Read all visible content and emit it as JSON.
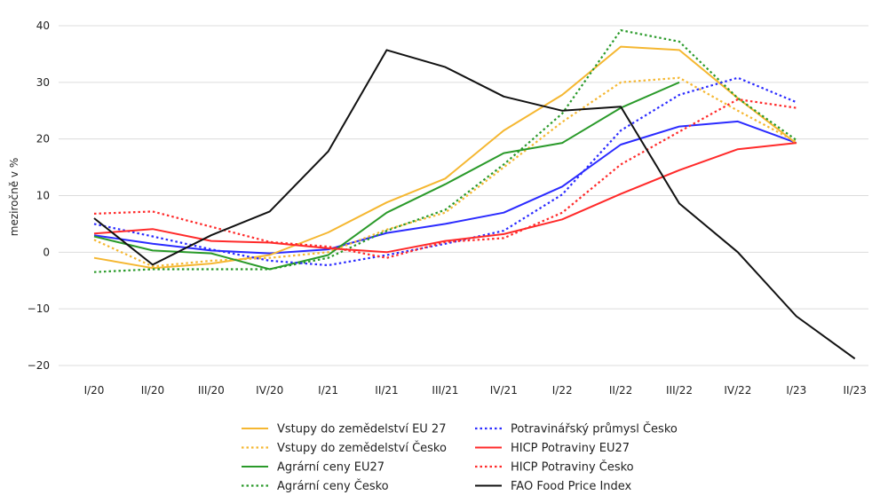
{
  "chart_data": {
    "type": "line",
    "categories": [
      "I/20",
      "II/20",
      "III/20",
      "IV/20",
      "I/21",
      "II/21",
      "III/21",
      "IV/21",
      "I/22",
      "II/22",
      "III/22",
      "IV/22",
      "I/23",
      "II/23"
    ],
    "ylabel": "meziročně v %",
    "ylim": [
      -20,
      40
    ],
    "yticks": [
      -20,
      -10,
      0,
      10,
      20,
      30,
      40
    ],
    "grid": true,
    "legend": "bottom",
    "series": [
      {
        "name": "Vstupy do zemědelství EU 27",
        "color": "#f5b731",
        "style": "solid",
        "values": [
          -1,
          -2.8,
          -2,
          -0.5,
          3.5,
          8.8,
          13,
          21.5,
          27.8,
          36.3,
          35.7,
          27.2,
          19.2,
          null
        ]
      },
      {
        "name": "Vstupy do zemědelství Česko",
        "color": "#f5b731",
        "style": "dotted",
        "values": [
          2.2,
          -2.5,
          -1.5,
          -1,
          0,
          4,
          7,
          15,
          23,
          30,
          30.8,
          25,
          19.5,
          null
        ]
      },
      {
        "name": "Agrární ceny EU27",
        "color": "#2a9a2a",
        "style": "solid",
        "values": [
          2.8,
          0.3,
          -0.2,
          -3,
          -0.5,
          7,
          12,
          17.5,
          19.3,
          25.5,
          30,
          null,
          null,
          null
        ]
      },
      {
        "name": "Agrární ceny Česko",
        "color": "#2a9a2a",
        "style": "dotted",
        "values": [
          -3.5,
          -3,
          -3,
          -3,
          -1,
          3.8,
          7.5,
          15.5,
          24.5,
          39.2,
          37.2,
          27.2,
          19.8,
          null
        ]
      },
      {
        "name": "Potravinářský průmysl Česko",
        "color": "#2b2bff",
        "style": "dotted",
        "values": [
          5,
          2.8,
          0.5,
          -1.5,
          -2.3,
          -0.5,
          1.5,
          3.8,
          10.2,
          21.5,
          27.8,
          30.8,
          26.5,
          null
        ]
      },
      {
        "name": "HICP Potraviny EU27",
        "color": "#ff2a2a",
        "style": "solid",
        "values": [
          3.3,
          4.1,
          2,
          1.7,
          0.7,
          0,
          2,
          3.2,
          5.8,
          10.3,
          14.5,
          18.2,
          19.3,
          null
        ]
      },
      {
        "name": "HICP Potraviny Česko",
        "color": "#ff2a2a",
        "style": "dotted",
        "values": [
          6.8,
          7.2,
          4.5,
          1.8,
          1,
          -1,
          1.8,
          2.5,
          7,
          15.5,
          21.3,
          27,
          25.5,
          null
        ]
      },
      {
        "name": "FAO Food Price Index",
        "color": "#111111",
        "style": "solid",
        "values": [
          6,
          -2.2,
          3,
          7.2,
          17.8,
          35.7,
          32.7,
          27.5,
          25,
          25.7,
          8.6,
          0,
          -11.3,
          -18.8
        ]
      }
    ],
    "extra_lines": [
      {
        "color": "#2b2bff",
        "style": "solid",
        "values": [
          3,
          1.5,
          0.3,
          -0.2,
          0.5,
          3.4,
          5,
          7,
          11.6,
          19,
          22.2,
          23.1,
          19.3,
          null
        ]
      }
    ]
  }
}
